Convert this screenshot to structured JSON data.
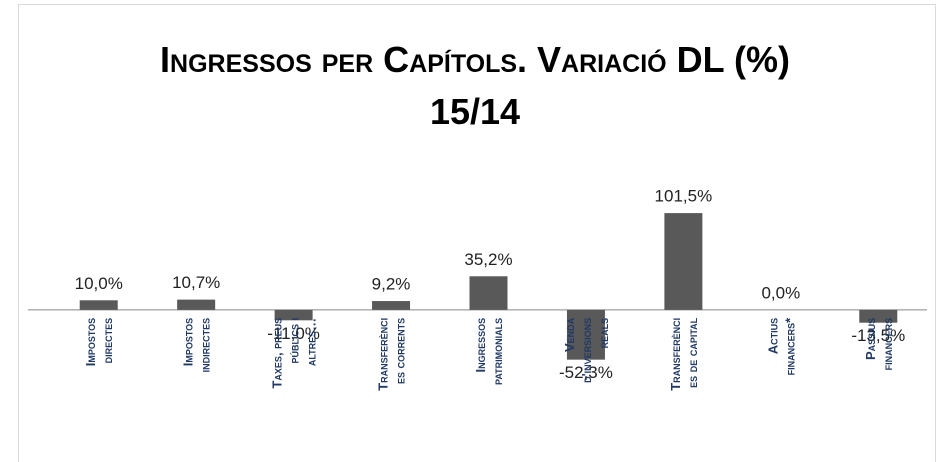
{
  "chart_data": {
    "type": "bar",
    "title": "Ingressos per Capítols. Variació DL (%) 15/14",
    "categories": [
      "Impostos directes",
      "Impostos indirectes",
      "Taxes, preus públics i altres…",
      "Transferències corrents",
      "Ingressos patrimonials",
      "Venda d'inversions reals",
      "Transferències de capital",
      "Actius financers*",
      "Passius financers"
    ],
    "values": [
      10.0,
      10.7,
      -11.0,
      9.2,
      35.2,
      -52.3,
      101.5,
      0.0,
      -13.5
    ],
    "value_labels": [
      "10,0%",
      "10,7%",
      "-11,0%",
      "9,2%",
      "35,2%",
      "-52,3%",
      "101,5%",
      "0,0%",
      "-13,5%"
    ],
    "color": "#595959",
    "ylim": [
      -60,
      110
    ]
  }
}
